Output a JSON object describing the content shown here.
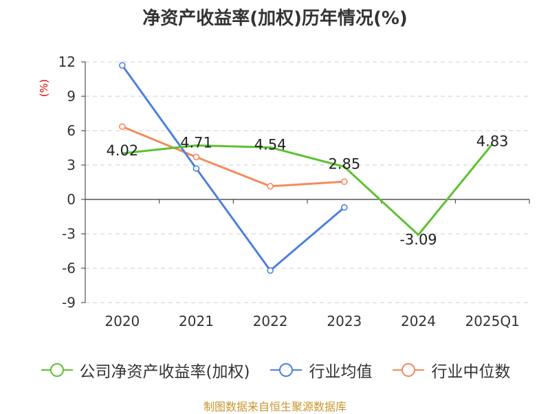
{
  "title": "净资产收益率(加权)历年情况(%)",
  "source": "制图数据来自恒生聚源数据库",
  "chart_data": {
    "type": "line",
    "title": "净资产收益率(加权)历年情况(%)",
    "ylabel": "(%)",
    "xlabel": "",
    "categories": [
      "2020",
      "2021",
      "2022",
      "2023",
      "2024",
      "2025Q1"
    ],
    "ylim": [
      -9,
      12
    ],
    "yticks": [
      12,
      9,
      6,
      3,
      0,
      -3,
      -6,
      -9
    ],
    "grid": true,
    "legend_position": "bottom",
    "series": [
      {
        "name": "公司净资产收益率(加权)",
        "color": "#5cc22e",
        "values": [
          4.02,
          4.71,
          4.54,
          2.85,
          -3.09,
          4.83
        ],
        "labels": [
          "4.02",
          "4.71",
          "4.54",
          "2.85",
          "-3.09",
          "4.83"
        ]
      },
      {
        "name": "行业均值",
        "color": "#4e7fdf",
        "values": [
          11.7,
          2.7,
          -6.2,
          -0.7,
          null,
          null
        ]
      },
      {
        "name": "行业中位数",
        "color": "#f48b5a",
        "values": [
          6.35,
          3.7,
          1.15,
          1.55,
          null,
          null
        ]
      }
    ]
  }
}
